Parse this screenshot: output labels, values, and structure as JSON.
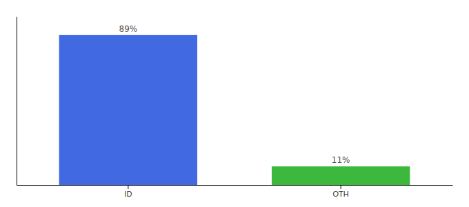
{
  "chart_data": {
    "type": "bar",
    "categories": [
      "ID",
      "OTH"
    ],
    "values": [
      89,
      11
    ],
    "colors": [
      "#4169E1",
      "#3CB83C"
    ],
    "value_labels": [
      "89%",
      "11%"
    ],
    "data_labels": true,
    "ylim": [
      0,
      100
    ],
    "tick_labels": "x"
  }
}
